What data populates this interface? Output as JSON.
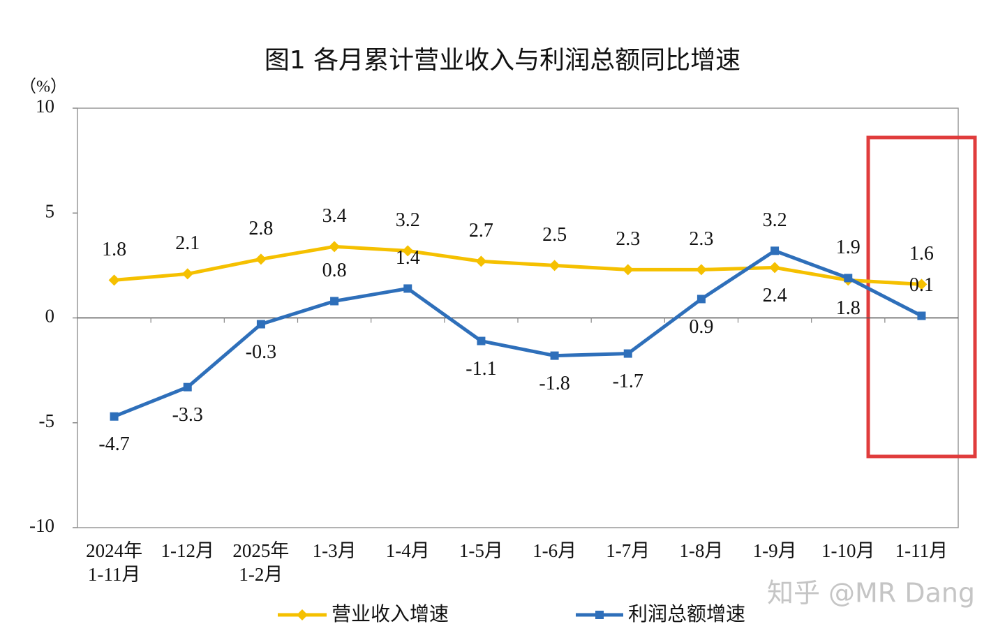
{
  "chart_data": {
    "type": "line",
    "title": "图1  各月累计营业收入与利润总额同比增速",
    "y_label": "（%）",
    "watermark": "知乎 @MR Dang",
    "categories": [
      [
        "2024年",
        "1-11月"
      ],
      [
        "1-12月"
      ],
      [
        "2025年",
        "1-2月"
      ],
      [
        "1-3月"
      ],
      [
        "1-4月"
      ],
      [
        "1-5月"
      ],
      [
        "1-6月"
      ],
      [
        "1-7月"
      ],
      [
        "1-8月"
      ],
      [
        "1-9月"
      ],
      [
        "1-10月"
      ],
      [
        "1-11月"
      ]
    ],
    "series": [
      {
        "name": "营业收入增速",
        "color": "#f5c000",
        "marker": "diamond",
        "values": [
          1.8,
          2.1,
          2.8,
          3.4,
          3.2,
          2.7,
          2.5,
          2.3,
          2.3,
          2.4,
          1.8,
          1.6
        ]
      },
      {
        "name": "利润总额增速",
        "color": "#2e6fba",
        "marker": "square",
        "values": [
          -4.7,
          -3.3,
          -0.3,
          0.8,
          1.4,
          -1.1,
          -1.8,
          -1.7,
          0.9,
          3.2,
          1.9,
          0.1
        ]
      }
    ],
    "ylim": [
      -10,
      10
    ],
    "yticks": [
      -10,
      -5,
      0,
      5,
      10
    ],
    "grid": false
  }
}
